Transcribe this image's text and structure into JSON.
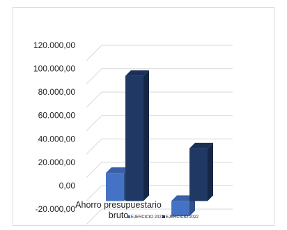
{
  "chart_data": {
    "type": "bar",
    "style": "3d-clustered-column",
    "categories": [
      "Ahorro presupuestario bruto"
    ],
    "category_lines": [
      "Ahorro presupuestario",
      "bruto"
    ],
    "series": [
      {
        "name": "EJERCICIO 2023",
        "values": [
          24000
        ],
        "color": "#4472c4"
      },
      {
        "name": "EJERCICIO 2022",
        "values": [
          107000
        ],
        "color": "#203864"
      }
    ],
    "second_group_values": [
      -13000,
      45000
    ],
    "ylim": [
      -20000,
      120000
    ],
    "yticks": [
      -20000,
      0,
      20000,
      40000,
      60000,
      80000,
      100000,
      120000
    ],
    "ytick_labels": [
      "-20.000,00",
      "0,00",
      "20.000,00",
      "40.000,00",
      "60.000,00",
      "80.000,00",
      "100.000,00",
      "120.000,00"
    ],
    "grid": true,
    "legend_position": "bottom",
    "colors": {
      "grid": "#d9d9d9",
      "frame": "#d9d9d9",
      "text": "#222222"
    }
  }
}
